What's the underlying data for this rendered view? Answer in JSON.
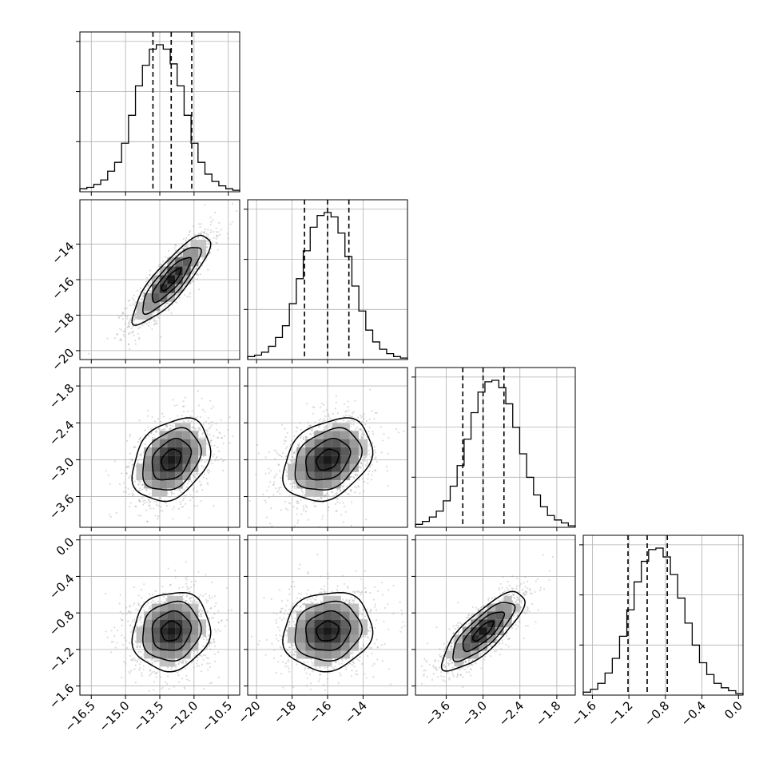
{
  "chart_data": {
    "type": "corner",
    "title": "",
    "parameters": [
      {
        "ticks": [
          -16.5,
          -15.0,
          -13.5,
          -12.0,
          -10.5
        ],
        "tick_labels": [
          "−16.5",
          "−15.0",
          "−13.5",
          "−12.0",
          "−10.5"
        ],
        "range": [
          -17.0,
          -10.0
        ],
        "quantiles": [
          -13.8,
          -13.0,
          -12.1
        ],
        "histogram": [
          0.02,
          0.03,
          0.05,
          0.08,
          0.14,
          0.2,
          0.33,
          0.52,
          0.72,
          0.86,
          0.97,
          1.0,
          0.97,
          0.87,
          0.72,
          0.52,
          0.33,
          0.2,
          0.12,
          0.07,
          0.04,
          0.02,
          0.01
        ]
      },
      {
        "ticks": [
          -20,
          -18,
          -16,
          -14
        ],
        "tick_labels": [
          "−20",
          "−18",
          "−16",
          "−14"
        ],
        "range": [
          -20.5,
          -11.5
        ],
        "quantiles": [
          -17.3,
          -16.0,
          -14.8
        ],
        "histogram": [
          0.02,
          0.03,
          0.05,
          0.09,
          0.15,
          0.23,
          0.38,
          0.55,
          0.74,
          0.9,
          0.98,
          1.0,
          0.97,
          0.86,
          0.7,
          0.5,
          0.33,
          0.2,
          0.12,
          0.07,
          0.04,
          0.02,
          0.01
        ]
      },
      {
        "ticks": [
          -3.6,
          -3.0,
          -2.4,
          -1.8
        ],
        "tick_labels": [
          "−3.6",
          "−3.0",
          "−2.4",
          "−1.8"
        ],
        "range": [
          -4.1,
          -1.5
        ],
        "quantiles": [
          -3.33,
          -3.0,
          -2.66
        ],
        "histogram": [
          0.02,
          0.04,
          0.07,
          0.11,
          0.18,
          0.28,
          0.42,
          0.6,
          0.78,
          0.92,
          0.99,
          1.0,
          0.95,
          0.84,
          0.68,
          0.5,
          0.34,
          0.22,
          0.14,
          0.08,
          0.05,
          0.03,
          0.01
        ]
      },
      {
        "ticks": [
          -1.6,
          -1.2,
          -0.8,
          -0.4,
          0.0
        ],
        "tick_labels": [
          "−1.6",
          "−1.2",
          "−0.8",
          "−0.4",
          "0.0"
        ],
        "range": [
          -1.7,
          0.05
        ],
        "quantiles": [
          -1.21,
          -1.0,
          -0.78
        ],
        "histogram": [
          0.02,
          0.04,
          0.08,
          0.15,
          0.25,
          0.4,
          0.58,
          0.77,
          0.91,
          0.99,
          1.0,
          0.94,
          0.82,
          0.66,
          0.49,
          0.34,
          0.22,
          0.14,
          0.08,
          0.05,
          0.03,
          0.01
        ]
      }
    ],
    "correlations": [
      [
        1.0,
        0.85,
        0.3,
        0.1
      ],
      [
        0.85,
        1.0,
        0.3,
        0.1
      ],
      [
        0.3,
        0.3,
        1.0,
        0.8
      ],
      [
        0.1,
        0.1,
        0.8,
        1.0
      ]
    ],
    "grid": true
  }
}
